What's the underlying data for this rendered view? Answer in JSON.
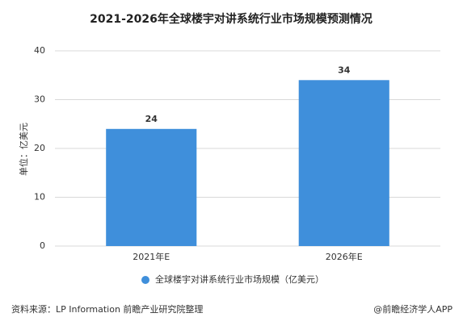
{
  "chart_data": {
    "type": "bar",
    "title": "2021-2026年全球楼宇对讲系统行业市场规模预测情况",
    "y_label": "单位：亿美元",
    "categories": [
      "2021年E",
      "2026年E"
    ],
    "series": [
      {
        "name": "全球楼宇对讲系统行业市场规模（亿美元）",
        "color": "#3f8fdb",
        "values": [
          24,
          34
        ]
      }
    ],
    "ylim": [
      0,
      40
    ],
    "yticks": [
      0,
      10,
      20,
      30,
      40
    ],
    "grid": true,
    "source": "资料来源：LP Information 前瞻产业研究院整理",
    "credit": "@前瞻经济学人APP"
  }
}
